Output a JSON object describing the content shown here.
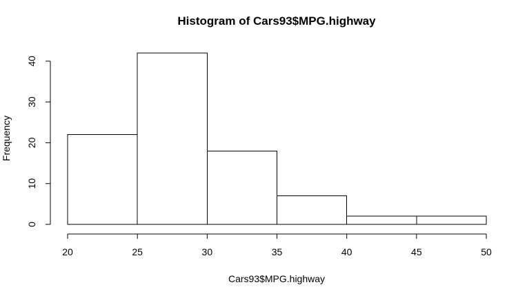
{
  "chart_data": {
    "type": "bar",
    "title": "Histogram of Cars93$MPG.highway",
    "xlabel": "Cars93$MPG.highway",
    "ylabel": "Frequency",
    "bins": [
      {
        "start": 20,
        "end": 25,
        "value": 22
      },
      {
        "start": 25,
        "end": 30,
        "value": 42
      },
      {
        "start": 30,
        "end": 35,
        "value": 18
      },
      {
        "start": 35,
        "end": 40,
        "value": 7
      },
      {
        "start": 40,
        "end": 45,
        "value": 2
      },
      {
        "start": 45,
        "end": 50,
        "value": 2
      }
    ],
    "xlim": [
      20,
      50
    ],
    "ylim": [
      0,
      42
    ],
    "xticks": [
      "20",
      "25",
      "30",
      "35",
      "40",
      "45",
      "50"
    ],
    "yticks": [
      "0",
      "10",
      "20",
      "30",
      "40"
    ],
    "grid": false,
    "legend": "none",
    "colors": {
      "bar_fill": "#ffffff",
      "bar_stroke": "#000000"
    }
  }
}
